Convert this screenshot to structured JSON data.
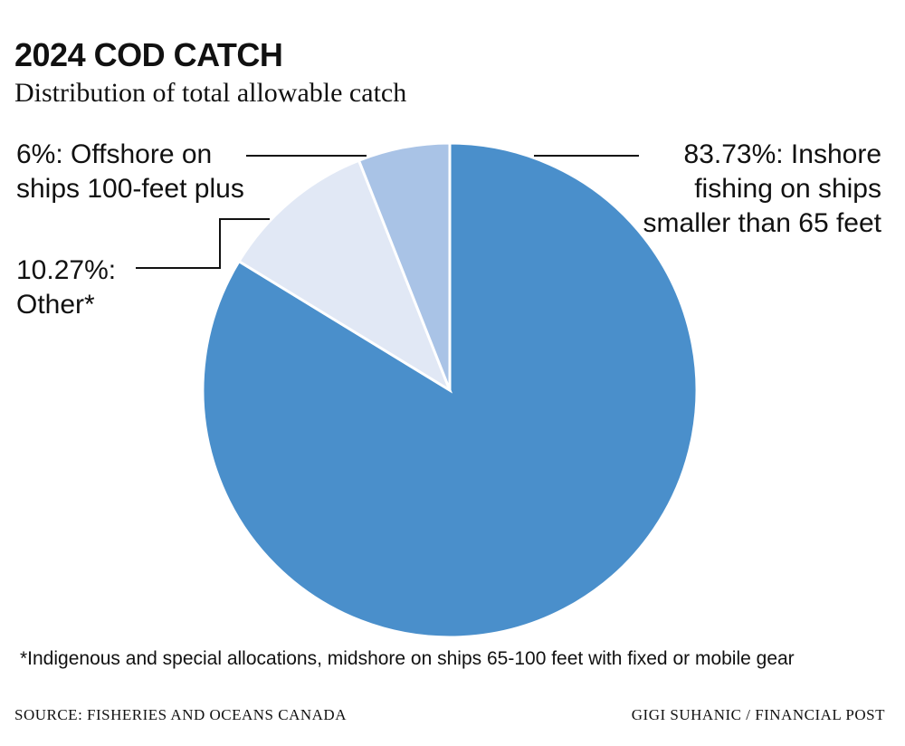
{
  "chart_data": {
    "type": "pie",
    "title": "2024 COD CATCH",
    "subtitle": "Distribution of total allowable catch",
    "slices": [
      {
        "label": "83.73%: Inshore fishing on ships smaller than 65 feet",
        "value": 83.73,
        "color": "#4a8fcb"
      },
      {
        "label": "10.27%: Other*",
        "value": 10.27,
        "color": "#e1e8f5"
      },
      {
        "label": "6%: Offshore on ships 100-feet plus",
        "value": 6,
        "color": "#a9c3e6"
      }
    ],
    "start": "12 o'clock, clockwise",
    "footnote": "*Indigenous and special allocations, midshore on ships 65-100 feet with fixed or mobile gear",
    "source": "SOURCE: FISHERIES AND OCEANS CANADA",
    "credit": "GIGI SUHANIC / FINANCIAL POST"
  }
}
